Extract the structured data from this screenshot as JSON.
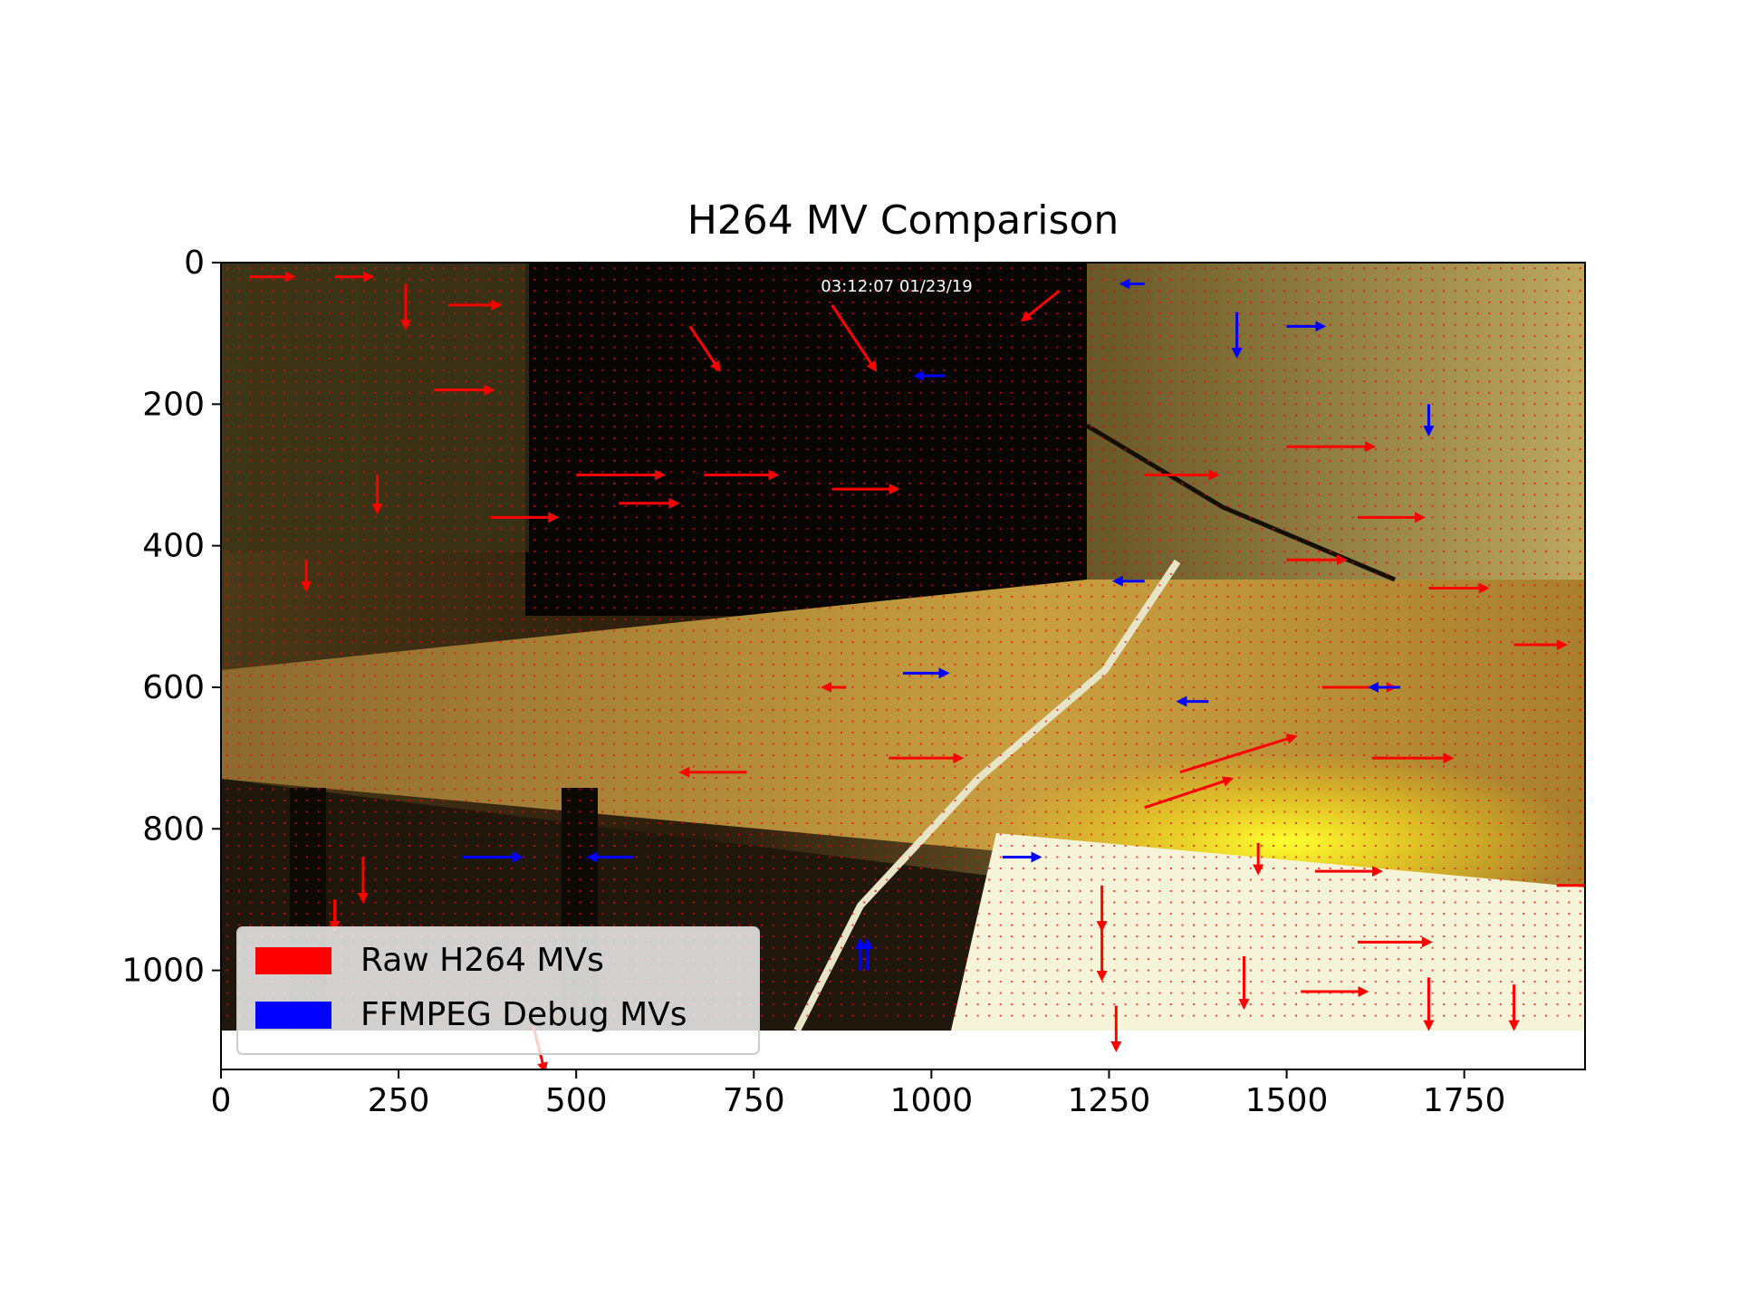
{
  "chart_data": {
    "type": "quiver",
    "title": "H264 MV Comparison",
    "xlabel": "",
    "ylabel": "",
    "xlim": [
      0,
      1920
    ],
    "ylim": [
      1140,
      0
    ],
    "image_extent": [
      0,
      1920,
      1080,
      0
    ],
    "xticks": [
      0,
      250,
      500,
      750,
      1000,
      1250,
      1500,
      1750
    ],
    "yticks": [
      0,
      200,
      400,
      600,
      800,
      1000
    ],
    "xtick_labels": [
      "0",
      "250",
      "500",
      "750",
      "1000",
      "1250",
      "1500",
      "1750"
    ],
    "ytick_labels": [
      "0",
      "200",
      "400",
      "600",
      "800",
      "1000"
    ],
    "overlay_timestamp": "03:12:07  01/23/19",
    "grid": false,
    "legend_position": "lower-left",
    "series": [
      {
        "name": "Raw H264 MVs",
        "color": "#ff0000",
        "grid_spacing": 16,
        "vectors": [
          {
            "x": 40,
            "y": 20,
            "dx": 60,
            "dy": 0
          },
          {
            "x": 160,
            "y": 20,
            "dx": 50,
            "dy": 0
          },
          {
            "x": 260,
            "y": 30,
            "dx": 0,
            "dy": 60
          },
          {
            "x": 320,
            "y": 60,
            "dx": 70,
            "dy": 0
          },
          {
            "x": 660,
            "y": 90,
            "dx": 40,
            "dy": 60
          },
          {
            "x": 860,
            "y": 60,
            "dx": 60,
            "dy": 90
          },
          {
            "x": 1180,
            "y": 40,
            "dx": -50,
            "dy": 40
          },
          {
            "x": 300,
            "y": 180,
            "dx": 80,
            "dy": 0
          },
          {
            "x": 500,
            "y": 300,
            "dx": 120,
            "dy": 0
          },
          {
            "x": 680,
            "y": 300,
            "dx": 100,
            "dy": 0
          },
          {
            "x": 860,
            "y": 320,
            "dx": 90,
            "dy": 0
          },
          {
            "x": 380,
            "y": 360,
            "dx": 90,
            "dy": 0
          },
          {
            "x": 560,
            "y": 340,
            "dx": 80,
            "dy": 0
          },
          {
            "x": 1300,
            "y": 300,
            "dx": 100,
            "dy": 0
          },
          {
            "x": 1500,
            "y": 260,
            "dx": 120,
            "dy": 0
          },
          {
            "x": 1600,
            "y": 360,
            "dx": 90,
            "dy": 0
          },
          {
            "x": 1700,
            "y": 460,
            "dx": 80,
            "dy": 0
          },
          {
            "x": 1820,
            "y": 540,
            "dx": 70,
            "dy": 0
          },
          {
            "x": 120,
            "y": 420,
            "dx": 0,
            "dy": 40
          },
          {
            "x": 1500,
            "y": 420,
            "dx": 80,
            "dy": 0
          },
          {
            "x": 1550,
            "y": 600,
            "dx": 100,
            "dy": 0
          },
          {
            "x": 1620,
            "y": 700,
            "dx": 110,
            "dy": 0
          },
          {
            "x": 1350,
            "y": 720,
            "dx": 160,
            "dy": -50
          },
          {
            "x": 1300,
            "y": 770,
            "dx": 120,
            "dy": -40
          },
          {
            "x": 940,
            "y": 700,
            "dx": 100,
            "dy": 0
          },
          {
            "x": 1460,
            "y": 820,
            "dx": 0,
            "dy": 40
          },
          {
            "x": 1540,
            "y": 860,
            "dx": 90,
            "dy": 0
          },
          {
            "x": 1240,
            "y": 880,
            "dx": 0,
            "dy": 60
          },
          {
            "x": 1240,
            "y": 940,
            "dx": 0,
            "dy": 70
          },
          {
            "x": 1260,
            "y": 1050,
            "dx": 0,
            "dy": 60
          },
          {
            "x": 1600,
            "y": 960,
            "dx": 100,
            "dy": 0
          },
          {
            "x": 1520,
            "y": 1030,
            "dx": 90,
            "dy": 0
          },
          {
            "x": 1440,
            "y": 980,
            "dx": 0,
            "dy": 70
          },
          {
            "x": 1700,
            "y": 1010,
            "dx": 0,
            "dy": 70
          },
          {
            "x": 1820,
            "y": 1020,
            "dx": 0,
            "dy": 60
          },
          {
            "x": 1880,
            "y": 880,
            "dx": 50,
            "dy": 0
          },
          {
            "x": 220,
            "y": 300,
            "dx": 0,
            "dy": 50
          },
          {
            "x": 880,
            "y": 600,
            "dx": -30,
            "dy": 0
          },
          {
            "x": 740,
            "y": 720,
            "dx": -90,
            "dy": 0
          },
          {
            "x": 440,
            "y": 1080,
            "dx": 15,
            "dy": 60
          },
          {
            "x": 200,
            "y": 840,
            "dx": 0,
            "dy": 60
          },
          {
            "x": 160,
            "y": 900,
            "dx": 0,
            "dy": 40
          }
        ]
      },
      {
        "name": "FFMPEG Debug MVs",
        "color": "#0000ff",
        "grid_spacing": 16,
        "vectors": [
          {
            "x": 1300,
            "y": 30,
            "dx": -30,
            "dy": 0
          },
          {
            "x": 1430,
            "y": 70,
            "dx": 0,
            "dy": 60
          },
          {
            "x": 1500,
            "y": 90,
            "dx": 50,
            "dy": 0
          },
          {
            "x": 1700,
            "y": 200,
            "dx": 0,
            "dy": 40
          },
          {
            "x": 1020,
            "y": 160,
            "dx": -40,
            "dy": 0
          },
          {
            "x": 960,
            "y": 580,
            "dx": 60,
            "dy": 0
          },
          {
            "x": 1390,
            "y": 620,
            "dx": -40,
            "dy": 0
          },
          {
            "x": 1660,
            "y": 600,
            "dx": -40,
            "dy": 0
          },
          {
            "x": 900,
            "y": 1000,
            "dx": 0,
            "dy": -40
          },
          {
            "x": 910,
            "y": 1000,
            "dx": 0,
            "dy": -40
          },
          {
            "x": 340,
            "y": 840,
            "dx": 80,
            "dy": 0
          },
          {
            "x": 1100,
            "y": 840,
            "dx": 50,
            "dy": 0
          },
          {
            "x": 1300,
            "y": 450,
            "dx": -40,
            "dy": 0
          },
          {
            "x": 580,
            "y": 840,
            "dx": -60,
            "dy": 0
          }
        ]
      }
    ]
  }
}
